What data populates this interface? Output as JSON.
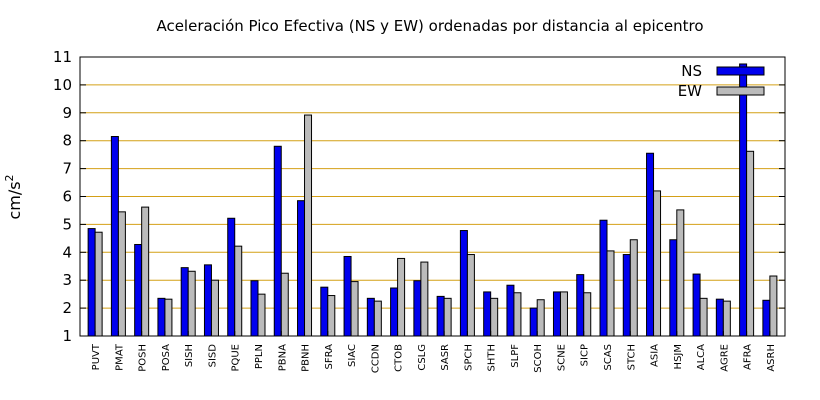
{
  "chart_data": {
    "type": "bar",
    "title": "Aceleración Pico Efectiva (NS y EW) ordenadas por distancia al epicentro",
    "xlabel": "",
    "ylabel": "cm/s",
    "ylabel_superscript": "2",
    "ylim": [
      1,
      11
    ],
    "yticks": [
      1,
      2,
      3,
      4,
      5,
      6,
      7,
      8,
      9,
      10,
      11
    ],
    "grid": true,
    "legend_position": "top-right",
    "categories": [
      "PUVT",
      "PMAT",
      "POSH",
      "POSA",
      "SISH",
      "SISD",
      "PQUE",
      "PPLN",
      "PBNA",
      "PBNH",
      "SFRA",
      "SIAC",
      "CCDN",
      "CTOB",
      "CSLG",
      "SASR",
      "SPCH",
      "SHTH",
      "SLPF",
      "SCOH",
      "SCNE",
      "SICP",
      "SCAS",
      "STCH",
      "ASIA",
      "HSJM",
      "ALCA",
      "AGRE",
      "AFRA",
      "ASRH"
    ],
    "series": [
      {
        "name": "NS",
        "color": "#0000ee",
        "values": [
          4.85,
          8.15,
          4.28,
          2.35,
          3.45,
          3.55,
          5.22,
          2.98,
          7.8,
          5.85,
          2.75,
          3.85,
          2.35,
          2.72,
          2.98,
          2.42,
          4.78,
          2.58,
          2.82,
          2.0,
          2.58,
          3.2,
          5.15,
          3.92,
          7.55,
          4.45,
          3.22,
          2.32,
          10.75,
          2.28
        ]
      },
      {
        "name": "EW",
        "color": "#bbbbbb",
        "values": [
          4.72,
          5.45,
          5.62,
          2.32,
          3.32,
          3.0,
          4.22,
          2.5,
          3.25,
          8.92,
          2.45,
          2.95,
          2.25,
          3.78,
          3.65,
          2.35,
          3.92,
          2.35,
          2.55,
          2.3,
          2.58,
          2.55,
          4.05,
          4.45,
          6.2,
          5.52,
          2.35,
          2.25,
          7.62,
          3.15
        ]
      }
    ]
  }
}
